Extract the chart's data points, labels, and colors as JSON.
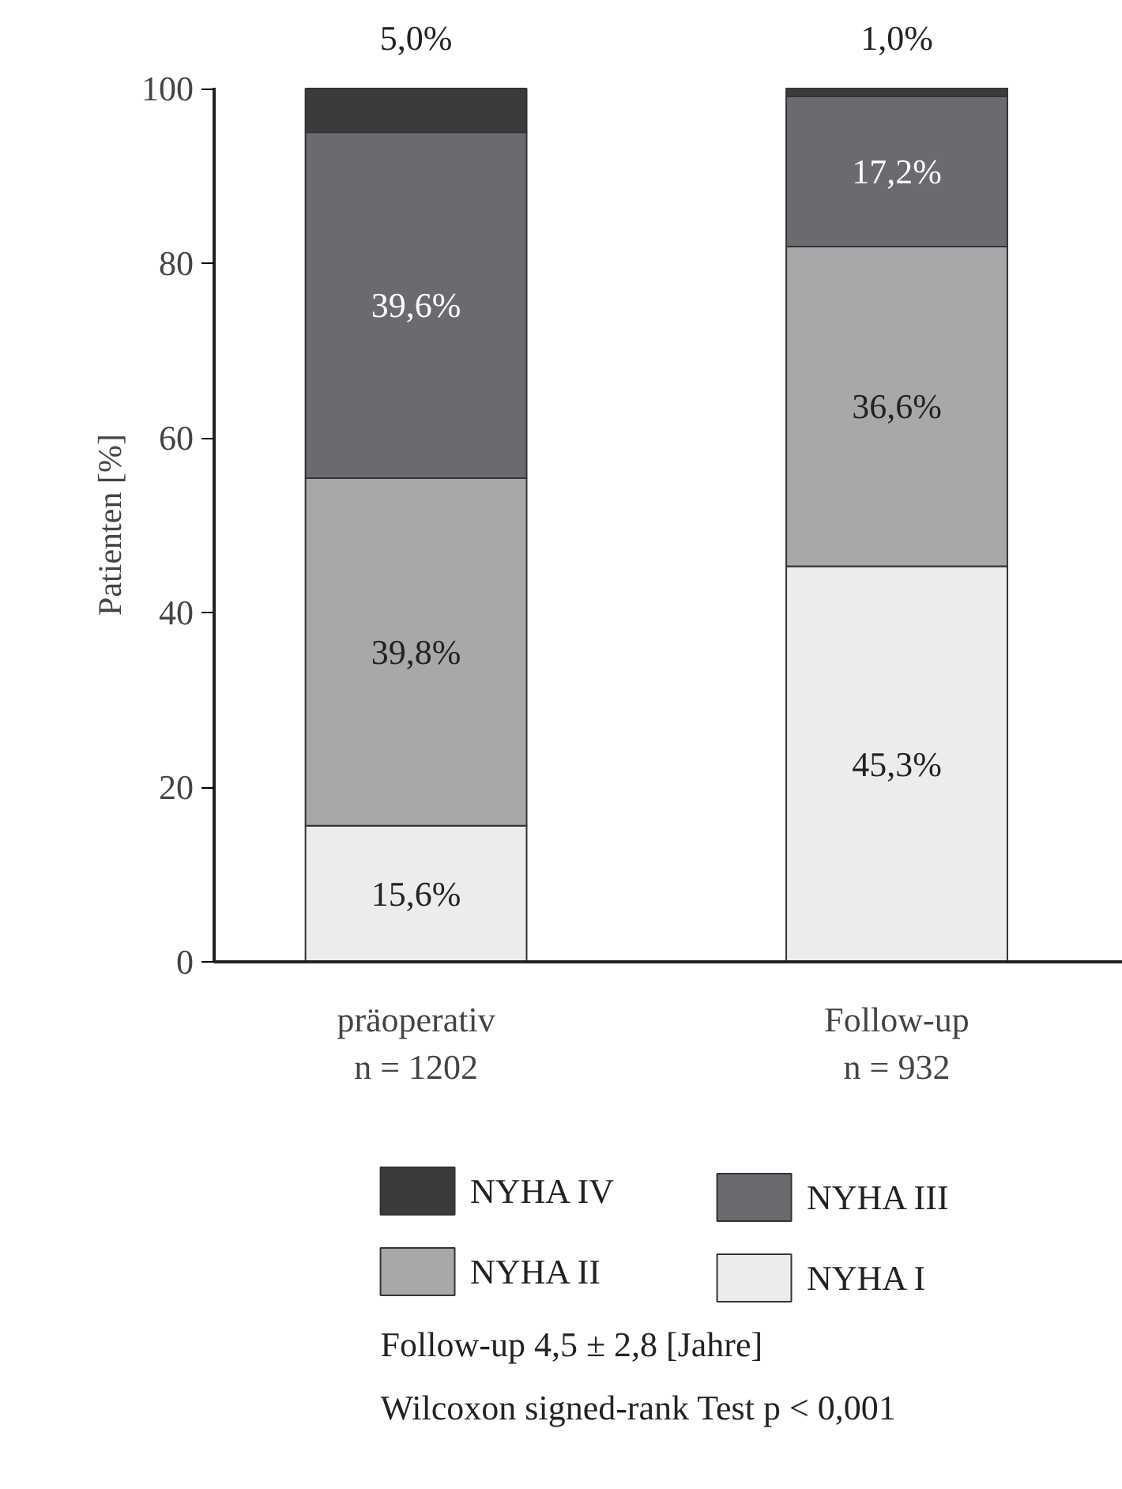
{
  "chart_data": {
    "type": "bar",
    "stacked": true,
    "ylabel": "Patienten [%]",
    "categories": [
      "präoperativ\nn = 1202",
      "Follow-up\nn = 932"
    ],
    "series": [
      {
        "name": "NYHA I",
        "color": "#ececec",
        "values": [
          15.6,
          45.3
        ],
        "value_labels": [
          "15,6%",
          "45,3%"
        ]
      },
      {
        "name": "NYHA II",
        "color": "#a8a8ab",
        "values": [
          39.8,
          36.6
        ],
        "value_labels": [
          "39,8%",
          "36,6%"
        ]
      },
      {
        "name": "NYHA III",
        "color": "#6b6b6f",
        "values": [
          39.6,
          17.2
        ],
        "value_labels": [
          "39,6%",
          "17,2%"
        ]
      },
      {
        "name": "NYHA IV",
        "color": "#3b3b3e",
        "values": [
          5.0,
          1.0
        ],
        "value_labels": [
          "5,0%",
          "1,0%"
        ]
      }
    ],
    "ylim": [
      0,
      100.1
    ],
    "yticks": [
      0,
      20,
      40,
      60,
      80,
      100
    ],
    "grid": false,
    "legend": "bottom",
    "annotations": [
      "Follow-up       4,5 ± 2,8 [Jahre]",
      "Wilcoxon signed-rank Test p < 0,001"
    ]
  }
}
